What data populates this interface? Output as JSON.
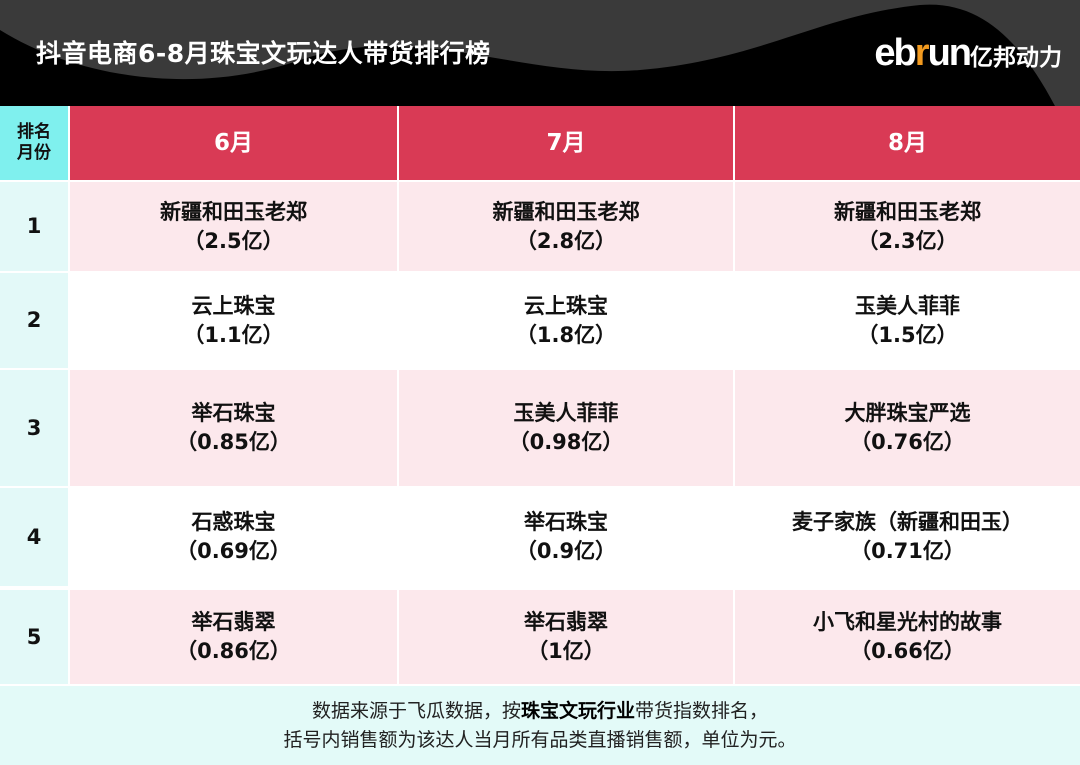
{
  "header": {
    "title": "抖音电商6-8月珠宝文玩达人带货排行榜",
    "logo_en_1": "eb",
    "logo_en_r": "r",
    "logo_en_2": "un",
    "logo_cn": "亿邦动力"
  },
  "table": {
    "corner_line1": "排名",
    "corner_line2": "月份",
    "months": [
      "6月",
      "7月",
      "8月"
    ],
    "rows": [
      {
        "rank": "1",
        "cells": [
          {
            "name": "新疆和田玉老郑",
            "sales": "（2.5亿）"
          },
          {
            "name": "新疆和田玉老郑",
            "sales": "（2.8亿）"
          },
          {
            "name": "新疆和田玉老郑",
            "sales": "（2.3亿）"
          }
        ]
      },
      {
        "rank": "2",
        "cells": [
          {
            "name": "云上珠宝",
            "sales": "（1.1亿）"
          },
          {
            "name": "云上珠宝",
            "sales": "（1.8亿）"
          },
          {
            "name": "玉美人菲菲",
            "sales": "（1.5亿）"
          }
        ]
      },
      {
        "rank": "3",
        "cells": [
          {
            "name": "举石珠宝",
            "sales": "（0.85亿）"
          },
          {
            "name": "玉美人菲菲",
            "sales": "（0.98亿）"
          },
          {
            "name": "大胖珠宝严选",
            "sales": "（0.76亿）"
          }
        ]
      },
      {
        "rank": "4",
        "cells": [
          {
            "name": "石惑珠宝",
            "sales": "（0.69亿）"
          },
          {
            "name": "举石珠宝",
            "sales": "（0.9亿）"
          },
          {
            "name": "麦子家族（新疆和田玉）",
            "sales": "（0.71亿）"
          }
        ]
      },
      {
        "rank": "5",
        "cells": [
          {
            "name": "举石翡翠",
            "sales": "（0.86亿）"
          },
          {
            "name": "举石翡翠",
            "sales": "（1亿）"
          },
          {
            "name": "小飞和星光村的故事",
            "sales": "（0.66亿）"
          }
        ]
      }
    ]
  },
  "footer": {
    "line1_a": "数据来源于飞瓜数据，按",
    "line1_bold": "珠宝文玩行业",
    "line1_b": "带货指数排名，",
    "line2": "括号内销售额为该达人当月所有品类直播销售额，单位为元。"
  },
  "colors": {
    "header_red": "#d93a55",
    "corner_cyan": "#7ff0ee",
    "row_pink": "#fce8ec",
    "footer_bg": "#e3faf8",
    "logo_orange": "#f29a1f"
  }
}
